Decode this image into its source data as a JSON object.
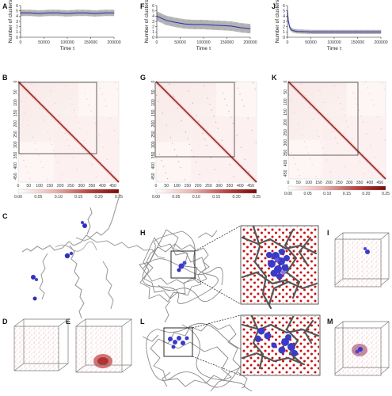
{
  "panels": {
    "A": "A",
    "B": "B",
    "C": "C",
    "D": "D",
    "E": "E",
    "F": "F",
    "G": "G",
    "H": "H",
    "I": "I",
    "J": "J",
    "K": "K",
    "L": "L",
    "M": "M"
  },
  "timeseries": {
    "ylabel": "Number of clusters",
    "xlabel": "Time τ",
    "xticks": [
      "0",
      "50000",
      "100000",
      "150000",
      "200000"
    ],
    "yticks": [
      "0",
      "1",
      "2",
      "3",
      "4",
      "5",
      "6"
    ]
  },
  "contact_maps": {
    "ticks": [
      "0",
      "50",
      "100",
      "150",
      "200",
      "250",
      "300",
      "350",
      "400",
      "450"
    ],
    "colorbars": [
      [
        "0.00",
        "0.05",
        "0.10",
        "0.15",
        "0.20",
        "0.25"
      ],
      [
        "0.00",
        "0.05",
        "0.10",
        "0.15",
        "0.20",
        "0.25"
      ],
      [
        "0.00",
        "0.05",
        "0.10",
        "0.15",
        "0.20",
        "0.25"
      ]
    ]
  },
  "chart_data": [
    {
      "type": "line",
      "panel": "A",
      "xlabel": "Time τ",
      "ylabel": "Number of clusters",
      "xlim": [
        0,
        200000
      ],
      "ylim": [
        0,
        6
      ],
      "x": [
        0,
        20000,
        40000,
        60000,
        80000,
        100000,
        120000,
        140000,
        160000,
        180000,
        200000
      ],
      "series": [
        {
          "values": [
            4.6,
            4.6,
            4.5,
            4.6,
            4.6,
            4.5,
            4.6,
            4.6,
            4.5,
            4.6,
            4.6
          ],
          "band": 0.6
        }
      ]
    },
    {
      "type": "line",
      "panel": "F",
      "xlabel": "Time τ",
      "ylabel": "Number of clusters",
      "xlim": [
        0,
        200000
      ],
      "ylim": [
        0,
        6
      ],
      "x": [
        0,
        20000,
        40000,
        60000,
        80000,
        100000,
        120000,
        140000,
        160000,
        180000,
        200000
      ],
      "series": [
        {
          "values": [
            4.0,
            3.2,
            2.8,
            2.5,
            2.4,
            2.4,
            2.3,
            2.2,
            2.1,
            1.8,
            1.6
          ],
          "band": 0.9
        }
      ]
    },
    {
      "type": "line",
      "panel": "J",
      "xlabel": "Time τ",
      "ylabel": "Number of clusters",
      "xlim": [
        0,
        200000
      ],
      "ylim": [
        0,
        6
      ],
      "x": [
        0,
        2000,
        5000,
        10000,
        20000,
        50000,
        100000,
        150000,
        200000
      ],
      "series": [
        {
          "values": [
            5.0,
            3.0,
            1.8,
            1.3,
            1.1,
            1.0,
            1.0,
            1.0,
            1.0
          ],
          "band": 0.4
        }
      ]
    }
  ]
}
